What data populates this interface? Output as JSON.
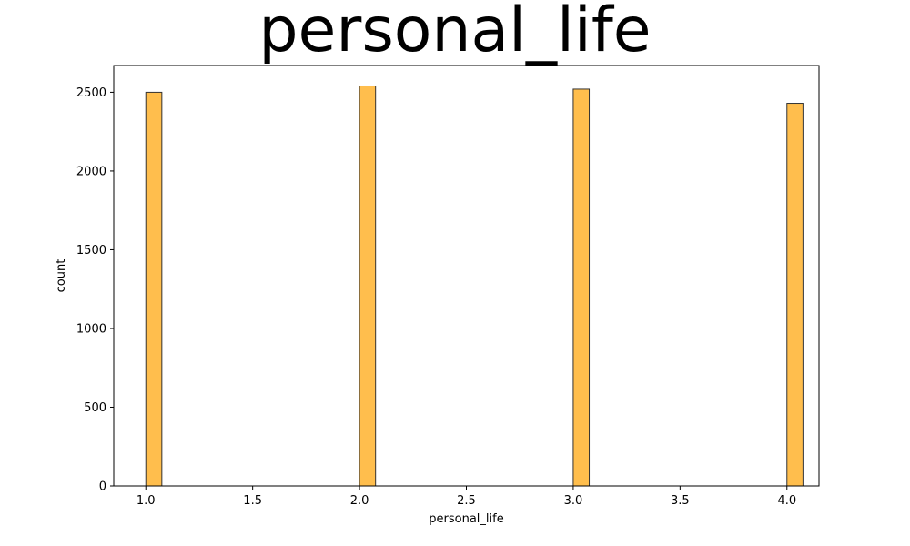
{
  "chart_data": {
    "type": "bar",
    "title": "personal_life",
    "xlabel": "personal_life",
    "ylabel": "count",
    "xlim": [
      0.85,
      4.15
    ],
    "ylim": [
      0,
      2670
    ],
    "x_ticks": [
      1.0,
      1.5,
      2.0,
      2.5,
      3.0,
      3.5,
      4.0
    ],
    "x_tick_labels": [
      "1.0",
      "1.5",
      "2.0",
      "2.5",
      "3.0",
      "3.5",
      "4.0"
    ],
    "y_ticks": [
      0,
      500,
      1000,
      1500,
      2000,
      2500
    ],
    "y_tick_labels": [
      "0",
      "500",
      "1000",
      "1500",
      "2000",
      "2500"
    ],
    "bin_width": 0.075,
    "bars": [
      {
        "x": 1.0,
        "count": 2500
      },
      {
        "x": 2.0,
        "count": 2540
      },
      {
        "x": 3.0,
        "count": 2520
      },
      {
        "x": 4.0,
        "count": 2430
      }
    ],
    "bar_color": "#ffbe4d",
    "bar_edge_color": "#333333",
    "grid": false,
    "legend": "none"
  }
}
